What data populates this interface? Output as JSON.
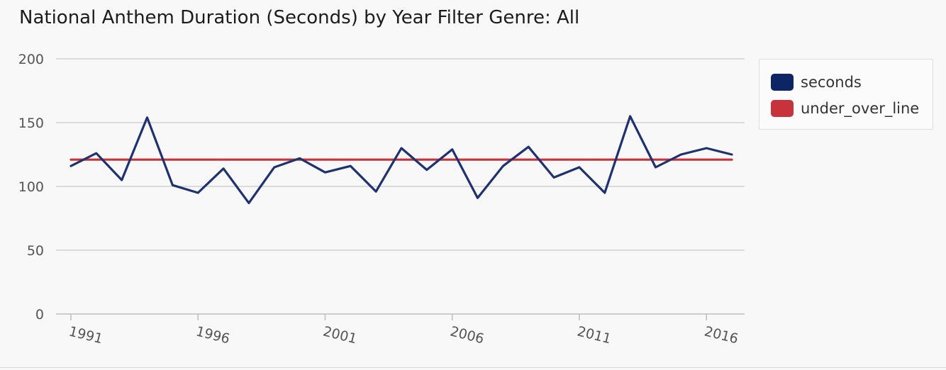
{
  "chart_data": {
    "type": "line",
    "title": "National Anthem Duration (Seconds) by Year Filter Genre: All",
    "xlabel": "",
    "ylabel": "",
    "x": [
      1991,
      1992,
      1993,
      1994,
      1995,
      1996,
      1997,
      1998,
      1999,
      2000,
      2001,
      2002,
      2003,
      2004,
      2005,
      2006,
      2007,
      2008,
      2009,
      2010,
      2011,
      2012,
      2013,
      2014,
      2015,
      2016,
      2017
    ],
    "xticks": [
      1991,
      1996,
      2001,
      2006,
      2011,
      2016
    ],
    "xlim": [
      1991,
      2017
    ],
    "ylim": [
      0,
      200
    ],
    "yticks": [
      0,
      50,
      100,
      150,
      200
    ],
    "grid": true,
    "legend_position": "right",
    "series": [
      {
        "name": "seconds",
        "color": "#1f3270",
        "values": [
          116,
          126,
          105,
          154,
          101,
          95,
          114,
          87,
          115,
          122,
          111,
          116,
          96,
          130,
          113,
          129,
          91,
          116,
          131,
          107,
          115,
          95,
          155,
          115,
          125,
          130,
          125
        ]
      },
      {
        "name": "under_over_line",
        "color": "#c8323a",
        "values": [
          121,
          121,
          121,
          121,
          121,
          121,
          121,
          121,
          121,
          121,
          121,
          121,
          121,
          121,
          121,
          121,
          121,
          121,
          121,
          121,
          121,
          121,
          121,
          121,
          121,
          121,
          121
        ]
      }
    ]
  },
  "legend": {
    "items": [
      {
        "label": "seconds",
        "color": "#0d2465"
      },
      {
        "label": "under_over_line",
        "color": "#c8323a"
      }
    ]
  }
}
